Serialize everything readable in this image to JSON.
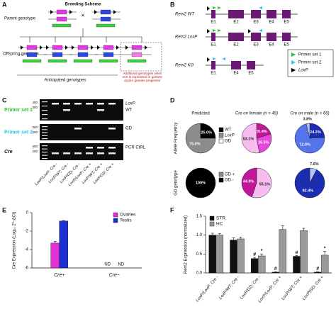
{
  "panel_labels": [
    "A",
    "B",
    "C",
    "D",
    "E",
    "F"
  ],
  "breeding_scheme": {
    "title": "Breeding Scheme",
    "parent_label": "Parent genotype",
    "cross": "×",
    "offspring_label": "Offspring genotype",
    "anticipated": "Anticipated genotypes",
    "additional": "Additional genotypes when Cre is expressed in gamete and/or gamete progenitor"
  },
  "gene_maps": {
    "maps": [
      {
        "name": "Rem2 WT",
        "exons": [
          "E1",
          "E2",
          "E3",
          "E4",
          "E5"
        ]
      },
      {
        "name": "Rem2 LoxP",
        "exons": [
          "E1",
          "E2",
          "E3",
          "E4",
          "E5"
        ]
      },
      {
        "name": "Rem2 KO",
        "exons": [
          "E1",
          "E4",
          "E5"
        ]
      }
    ],
    "legend": [
      "Primer set 1",
      "Primer set 2",
      "LoxP"
    ]
  },
  "gel": {
    "rows": [
      {
        "label": "Primer set 1",
        "bands": [
          "LoxP",
          "WT"
        ],
        "sizes": [
          "400",
          "300"
        ]
      },
      {
        "label": "Primer set 2",
        "bands": [
          "GD"
        ],
        "sizes": [
          "300",
          "200"
        ]
      },
      {
        "label": "Cre",
        "bands": [
          "PCR CtRL"
        ],
        "sizes": [
          "300",
          "200"
        ]
      }
    ],
    "lanes": [
      "LoxP/LoxP; Cre -",
      "LoxP/WT; Cre -",
      "LoxP/GD; Cre -",
      "LoxP/LoxP; Cre +",
      "LoxP/WT; Cre +",
      "LoxP/GD; Cre +"
    ]
  },
  "chart_data": [
    {
      "type": "pie_grid",
      "columns": [
        "Predicted",
        "Cre on female (n = 49)",
        "Cre on male (n = 66)"
      ],
      "rows": [
        {
          "label": "Allele Frequency",
          "legend": [
            "WT",
            "LoxP",
            "GD"
          ],
          "legend_colors": [
            "#000000",
            "#8c8c8c",
            "#ffffff"
          ],
          "pies": [
            {
              "colors": [
                "#000000",
                "#8c8c8c",
                "#ffffff"
              ],
              "values": [
                25,
                75,
                0
              ],
              "value_labels": [
                "25.0%",
                "75.0%",
                null
              ]
            },
            {
              "colors": [
                "#c0179b",
                "#e646dc",
                "#f8bdf0"
              ],
              "values": [
                20.4,
                26.5,
                53.1
              ],
              "value_labels": [
                "20.4%",
                "26.5%",
                "53.1%"
              ]
            },
            {
              "colors": [
                "#1b2db0",
                "#5474ea",
                "#b7c5f6"
              ],
              "values": [
                24.2,
                72.0,
                3.8
              ],
              "value_labels": [
                "24.2%",
                "72.0%",
                "3.8%"
              ]
            }
          ]
        },
        {
          "label": "GD genotype",
          "legend": [
            "GD +",
            "GD -"
          ],
          "legend_colors": [
            "#8c8c8c",
            "#000000"
          ],
          "pies": [
            {
              "colors": [
                "#8c8c8c",
                "#000000"
              ],
              "values": [
                0,
                100
              ],
              "value_labels": [
                null,
                "100%"
              ]
            },
            {
              "colors": [
                "#f8bdf0",
                "#c0179b"
              ],
              "values": [
                55.1,
                44.9
              ],
              "value_labels": [
                "55.1%",
                "44.9%"
              ]
            },
            {
              "colors": [
                "#b7c5f6",
                "#1b2db0"
              ],
              "values": [
                7.6,
                92.4
              ],
              "value_labels": [
                "7.6%",
                "92.4%"
              ]
            }
          ]
        }
      ]
    },
    {
      "type": "bar",
      "y_label": "Cre Expression (Log₁₀ 2^-ΔCt)",
      "categories": [
        "Cre+",
        "Cre−"
      ],
      "series": [
        {
          "name": "Ovaries",
          "color": "#e031d8",
          "values": [
            -3.3,
            null
          ],
          "errors": [
            0.2,
            null
          ],
          "value_labels": [
            null,
            "ND"
          ]
        },
        {
          "name": "Testis",
          "color": "#1c2fd0",
          "values": [
            -0.9,
            null
          ],
          "errors": [
            0.05,
            null
          ],
          "value_labels": [
            null,
            "ND"
          ]
        }
      ],
      "ylim": [
        -6,
        0
      ],
      "yticks": [
        -6,
        -4,
        -2,
        0
      ],
      "legend": "top-right"
    },
    {
      "type": "bar",
      "y_label": "Rem2 Expression (normalized)",
      "categories": [
        "LoxP/LoxP; Cre -",
        "LoxP/WT; Cre -",
        "LoxP/GD; Cre -",
        "LoxP/LoxP; Cre +",
        "LoxP/WT; Cre +",
        "LoxP/GD; Cre +"
      ],
      "series": [
        {
          "name": "STR",
          "color": "#111111",
          "values": [
            1.0,
            0.87,
            0.38,
            0.02,
            0.44,
            0.02
          ],
          "errors": [
            0.05,
            0.06,
            0.03,
            0.01,
            0.02,
            0.01
          ],
          "marks": [
            null,
            null,
            "#",
            "#",
            "#",
            "#"
          ]
        },
        {
          "name": "HC",
          "color": "#9a9a9a",
          "values": [
            1.0,
            0.9,
            0.45,
            1.15,
            1.12,
            0.47
          ],
          "errors": [
            0.04,
            0.05,
            0.05,
            0.1,
            0.06,
            0.1
          ],
          "marks": [
            null,
            null,
            "*",
            null,
            null,
            "*"
          ]
        }
      ],
      "ylim": [
        0,
        1.5
      ],
      "yticks": [
        {
          "value": 0,
          "label": "0.0"
        },
        {
          "value": 0.5,
          "label": "0.5"
        },
        {
          "value": 1,
          "label": "1.0"
        },
        {
          "value": 1.5,
          "label": "1.5"
        }
      ],
      "legend": "top-left"
    }
  ]
}
